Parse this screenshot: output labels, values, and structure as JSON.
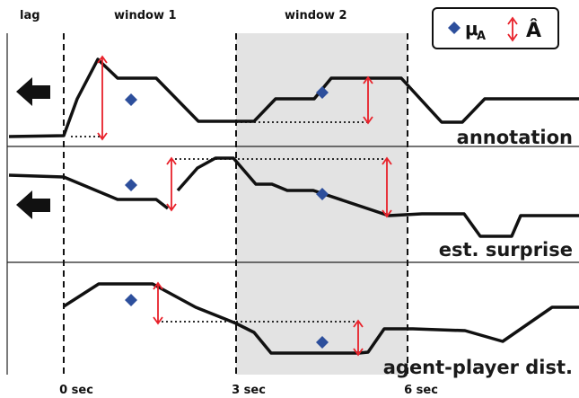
{
  "header": {
    "lag_label": "lag",
    "window1_label": "window 1",
    "window2_label": "window 2"
  },
  "legend": {
    "mean_label": "μ",
    "mean_subscript": "A",
    "amp_label": "Â",
    "mean_marker_color": "#2d4f9c",
    "amp_arrow_color": "#e8212a"
  },
  "tracks": [
    {
      "label": "annotation"
    },
    {
      "label": "est. surprise"
    },
    {
      "label": "agent-player dist."
    }
  ],
  "time_axis": {
    "ticks": [
      "0 sec",
      "3 sec",
      "6 sec"
    ]
  },
  "colors": {
    "line": "#111111",
    "window_shade": "#e3e3e3",
    "divider": "#222222"
  },
  "icons": {
    "lag_arrow": "left-arrow-icon"
  }
}
